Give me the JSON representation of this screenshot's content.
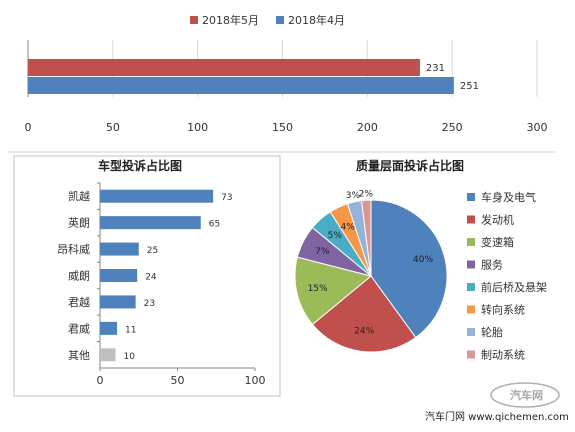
{
  "chart_data": [
    {
      "type": "bar",
      "orientation": "horizontal",
      "categories": [
        ""
      ],
      "series": [
        {
          "name": "2018年5月",
          "values": [
            231
          ],
          "color": "#c0504d"
        },
        {
          "name": "2018年4月",
          "values": [
            251
          ],
          "color": "#4f81bd"
        }
      ],
      "xlim": [
        0,
        300
      ],
      "xticks": [
        "0",
        "50",
        "100",
        "150",
        "200",
        "250",
        "300"
      ],
      "grid": true,
      "legend": "top"
    },
    {
      "type": "bar",
      "orientation": "horizontal",
      "title": "车型投诉占比图",
      "categories": [
        "凯越",
        "英朗",
        "昂科威",
        "威朗",
        "君越",
        "君威",
        "其他"
      ],
      "values": [
        73,
        65,
        25,
        24,
        23,
        11,
        10
      ],
      "colors": [
        "#4f81bd",
        "#4f81bd",
        "#4f81bd",
        "#4f81bd",
        "#4f81bd",
        "#4f81bd",
        "#bfbfbf"
      ],
      "xlim": [
        0,
        100
      ],
      "xticks": [
        "0",
        "50",
        "100"
      ]
    },
    {
      "type": "pie",
      "title": "质量层面投诉占比图",
      "categories": [
        "车身及电气",
        "发动机",
        "变速箱",
        "服务",
        "前后桥及悬架",
        "转向系统",
        "轮胎",
        "制动系统"
      ],
      "values": [
        40,
        24,
        15,
        7,
        5,
        4,
        3,
        2
      ],
      "labels": [
        "40%",
        "24%",
        "15%",
        "7%",
        "5%",
        "4%",
        "3%",
        "2%"
      ],
      "colors": [
        "#4f81bd",
        "#c0504d",
        "#9bbb59",
        "#8064a2",
        "#4bacc6",
        "#f79646",
        "#95b3d7",
        "#d99694"
      ],
      "legend": "right"
    }
  ],
  "watermark": {
    "source": "汽车门网 www.qichemen.com",
    "logo": "汽车网"
  }
}
